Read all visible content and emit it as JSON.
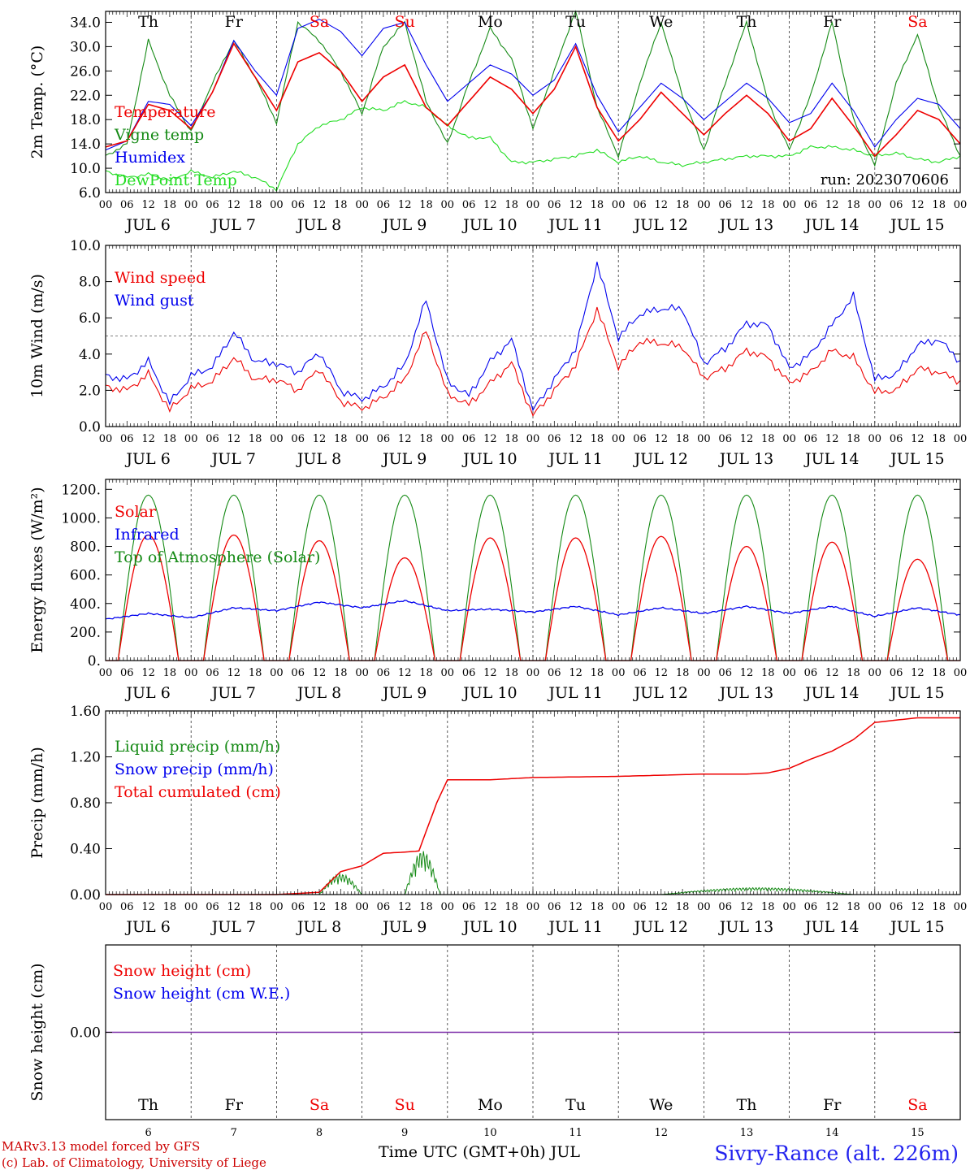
{
  "page": {
    "run_label": "run: 2023070606",
    "footer_model": "MARv3.13 model forced by GFS",
    "footer_lab": "(c) Lab. of Climatology, University of Liege",
    "footer_time": "Time UTC (GMT+0h) JUL",
    "footer_station": "Sivry-Rance (alt. 226m)"
  },
  "days": {
    "weekday_labels": [
      "Th",
      "Fr",
      "Sa",
      "Su",
      "Mo",
      "Tu",
      "We",
      "Th",
      "Fr",
      "Sa"
    ],
    "weekend_flags": [
      false,
      false,
      true,
      true,
      false,
      false,
      false,
      false,
      false,
      true
    ],
    "date_labels": [
      "JUL  6",
      "JUL  7",
      "JUL  8",
      "JUL  9",
      "JUL 10",
      "JUL 11",
      "JUL 12",
      "JUL 13",
      "JUL 14",
      "JUL 15"
    ],
    "day_numbers": [
      "6",
      "7",
      "8",
      "9",
      "10",
      "11",
      "12",
      "13",
      "14",
      "15"
    ],
    "hour_labels": [
      "00",
      "06",
      "12",
      "18"
    ],
    "final_hour_label": "00"
  },
  "colors": {
    "red": "#ee0000",
    "green": "#158a15",
    "blue": "#0000ee",
    "lightgreen": "#22dd22",
    "purple": "#7a2aa8",
    "axis": "#000000",
    "footer_red": "#cc0000",
    "station_blue": "#2222ee"
  },
  "chart_data": [
    {
      "type": "line",
      "ylabel": "2m Temp. (°C)",
      "ylim": [
        6.0,
        35.8
      ],
      "yticks": [
        "6.0",
        "10.0",
        "14.0",
        "18.0",
        "22.0",
        "26.0",
        "30.0",
        "34.0"
      ],
      "legend": [
        "Temperature",
        "Vigne temp",
        "Humidex",
        "DewPoint Temp"
      ],
      "x_hours": [
        0,
        6,
        12,
        18,
        24,
        30,
        36,
        42,
        48,
        54,
        60,
        66,
        72,
        78,
        84,
        90,
        96,
        102,
        108,
        114,
        120,
        126,
        132,
        138,
        144,
        150,
        156,
        162,
        168,
        174,
        180,
        186,
        192,
        198,
        204,
        210,
        216,
        222,
        228,
        234,
        240
      ],
      "series": [
        {
          "name": "Temperature",
          "color": "red",
          "values": [
            13.5,
            14.5,
            20.5,
            19.5,
            16.5,
            22.5,
            30.5,
            25.0,
            19.5,
            27.5,
            29.0,
            26.0,
            21.0,
            25.0,
            27.0,
            20.0,
            17.0,
            21.0,
            25.0,
            23.0,
            19.0,
            23.0,
            30.0,
            20.0,
            14.5,
            18.0,
            22.5,
            19.0,
            15.5,
            19.0,
            22.0,
            19.0,
            14.5,
            16.5,
            21.5,
            17.0,
            12.0,
            15.5,
            19.5,
            18.0,
            14.0
          ]
        },
        {
          "name": "Vigne temp",
          "color": "green",
          "values": [
            12.0,
            14.0,
            31.0,
            22.0,
            16.0,
            24.0,
            31.0,
            25.0,
            17.5,
            34.0,
            31.0,
            26.0,
            19.0,
            30.0,
            34.0,
            21.0,
            14.0,
            24.0,
            33.0,
            28.0,
            16.5,
            26.0,
            36.0,
            20.0,
            12.0,
            24.0,
            34.0,
            22.0,
            13.0,
            24.0,
            34.0,
            21.0,
            13.0,
            22.0,
            34.0,
            18.0,
            10.5,
            24.0,
            32.0,
            20.0,
            12.0
          ]
        },
        {
          "name": "Humidex",
          "color": "blue",
          "values": [
            13.0,
            14.5,
            21.0,
            20.5,
            17.0,
            22.5,
            31.0,
            26.0,
            22.0,
            33.0,
            34.5,
            32.5,
            28.5,
            33.0,
            34.0,
            27.0,
            21.0,
            24.0,
            27.0,
            25.5,
            22.0,
            24.5,
            30.5,
            22.0,
            16.0,
            20.0,
            24.0,
            21.5,
            18.0,
            21.0,
            24.0,
            21.5,
            17.5,
            19.0,
            24.0,
            19.5,
            13.5,
            18.0,
            21.5,
            20.5,
            16.5
          ]
        },
        {
          "name": "DewPoint Temp",
          "color": "lightgreen",
          "values": [
            9.5,
            8.5,
            9.0,
            8.0,
            9.5,
            8.5,
            9.5,
            8.5,
            6.5,
            14.0,
            17.0,
            18.0,
            20.0,
            19.5,
            21.0,
            20.0,
            17.0,
            15.0,
            15.0,
            11.0,
            11.0,
            11.5,
            12.0,
            13.0,
            11.0,
            12.0,
            11.0,
            10.5,
            11.0,
            11.5,
            12.0,
            12.0,
            12.0,
            13.5,
            13.5,
            13.0,
            12.0,
            12.5,
            11.5,
            11.0,
            12.0
          ]
        }
      ]
    },
    {
      "type": "line",
      "ylabel": "10m Wind (m/s)",
      "ylim": [
        0.0,
        10.0
      ],
      "yticks": [
        "0.0",
        "2.0",
        "4.0",
        "6.0",
        "8.0",
        "10.0"
      ],
      "reference_line": 5.0,
      "legend": [
        "Wind speed",
        "Wind gust"
      ],
      "x_hours": [
        0,
        6,
        12,
        18,
        24,
        30,
        36,
        42,
        48,
        54,
        60,
        66,
        72,
        78,
        84,
        90,
        96,
        102,
        108,
        114,
        120,
        126,
        132,
        138,
        144,
        150,
        156,
        162,
        168,
        174,
        180,
        186,
        192,
        198,
        204,
        210,
        216,
        222,
        228,
        234,
        240
      ],
      "series": [
        {
          "name": "Wind speed",
          "color": "red",
          "values": [
            2.2,
            2.0,
            2.9,
            0.9,
            2.1,
            2.5,
            3.8,
            2.6,
            2.6,
            2.0,
            3.2,
            1.4,
            1.0,
            1.6,
            2.6,
            5.3,
            1.8,
            1.2,
            2.4,
            3.5,
            0.6,
            2.0,
            3.4,
            6.5,
            3.3,
            4.7,
            4.6,
            4.4,
            2.7,
            3.2,
            4.2,
            3.8,
            2.4,
            3.0,
            4.2,
            3.8,
            1.9,
            2.0,
            3.2,
            3.0,
            2.5
          ]
        },
        {
          "name": "Wind gust",
          "color": "blue",
          "values": [
            2.8,
            2.6,
            3.6,
            1.3,
            2.8,
            3.3,
            5.2,
            3.6,
            3.5,
            3.0,
            4.1,
            2.0,
            1.5,
            2.2,
            3.4,
            7.0,
            2.5,
            1.7,
            3.6,
            4.8,
            0.9,
            2.6,
            4.3,
            9.0,
            4.9,
            6.2,
            6.5,
            6.5,
            3.5,
            4.3,
            5.7,
            5.6,
            3.2,
            4.0,
            5.6,
            7.2,
            2.6,
            2.9,
            4.5,
            4.8,
            3.6
          ]
        }
      ]
    },
    {
      "type": "line",
      "ylabel": "Energy fluxes (W/m²)",
      "ylim": [
        0,
        1270
      ],
      "yticks": [
        "0.",
        "200.",
        "400.",
        "600.",
        "800.",
        "1000.",
        "1200."
      ],
      "legend": [
        "Solar",
        "Infrared",
        "Top of Atmosphere (Solar)"
      ],
      "day_length_hours": [
        3.5,
        20.5
      ],
      "toa_peak": 1160,
      "solar_peaks": [
        880,
        880,
        840,
        720,
        860,
        860,
        870,
        800,
        830,
        710
      ],
      "infrared": {
        "x_hours": [
          0,
          12,
          24,
          36,
          48,
          60,
          72,
          84,
          96,
          108,
          120,
          132,
          144,
          156,
          168,
          180,
          192,
          204,
          216,
          228,
          240
        ],
        "values": [
          290,
          330,
          300,
          370,
          350,
          410,
          370,
          420,
          350,
          360,
          340,
          380,
          320,
          370,
          330,
          380,
          330,
          380,
          310,
          370,
          320
        ]
      },
      "series_colors": {
        "Solar": "red",
        "Infrared": "blue",
        "Top of Atmosphere (Solar)": "green"
      }
    },
    {
      "type": "line",
      "ylabel": "Precip (mm/h)",
      "ylim": [
        0.0,
        1.6
      ],
      "yticks": [
        "0.00",
        "0.40",
        "0.80",
        "1.20",
        "1.60"
      ],
      "legend": [
        "Liquid precip (mm/h)",
        "Snow precip (mm/h)",
        "Total cumulated (cm)"
      ],
      "total_cumulated": {
        "x_hours": [
          0,
          48,
          54,
          60,
          66,
          72,
          78,
          84,
          88,
          90,
          93,
          96,
          108,
          120,
          144,
          168,
          180,
          186,
          192,
          198,
          204,
          210,
          216,
          228,
          240
        ],
        "values": [
          0,
          0,
          0.01,
          0.02,
          0.2,
          0.25,
          0.36,
          0.37,
          0.38,
          0.55,
          0.8,
          1.0,
          1.0,
          1.02,
          1.03,
          1.05,
          1.05,
          1.06,
          1.1,
          1.18,
          1.25,
          1.35,
          1.5,
          1.54,
          1.54
        ]
      },
      "liquid_bursts": [
        {
          "start": 60,
          "end": 72,
          "peak": 0.18
        },
        {
          "start": 84,
          "end": 94,
          "peak": 0.38
        },
        {
          "start": 156,
          "end": 210,
          "peak": 0.06
        }
      ]
    },
    {
      "type": "line",
      "ylabel": "Snow height (cm)",
      "ylim": [
        -1.0,
        1.0
      ],
      "yticks": [
        "0.00"
      ],
      "legend": [
        "Snow height (cm)",
        "Snow height (cm W.E.)"
      ],
      "values": [
        0.0,
        0.0
      ]
    }
  ]
}
